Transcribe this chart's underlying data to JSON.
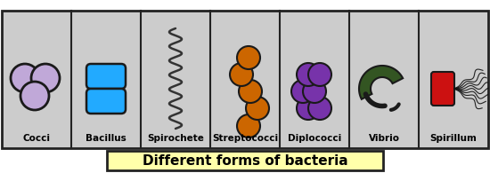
{
  "title": "Different forms of bacteria",
  "title_bg": "#ffffaa",
  "title_fontsize": 11,
  "outer_border_color": "#222222",
  "cell_bg": "#cccccc",
  "cell_border_color": "#222222",
  "labels": [
    "Cocci",
    "Bacillus",
    "Spirochete",
    "Streptococci",
    "Diplococci",
    "Vibrio",
    "Spirillum"
  ],
  "label_fontsize": 7.5,
  "cocci_color": "#c0a8d8",
  "cocci_edge": "#1a1a1a",
  "bacillus_color": "#22aaff",
  "bacillus_edge": "#1a1a1a",
  "spirochete_color": "#333333",
  "streptococci_color": "#cc6600",
  "streptococci_edge": "#1a1a1a",
  "diplococci_color": "#7733aa",
  "diplococci_edge": "#1a1a1a",
  "vibrio_color": "#335522",
  "vibrio_edge": "#1a1a1a",
  "spirillum_body_color": "#cc1111",
  "spirillum_body_edge": "#1a1a1a",
  "spirillum_flagella_color": "#111111"
}
